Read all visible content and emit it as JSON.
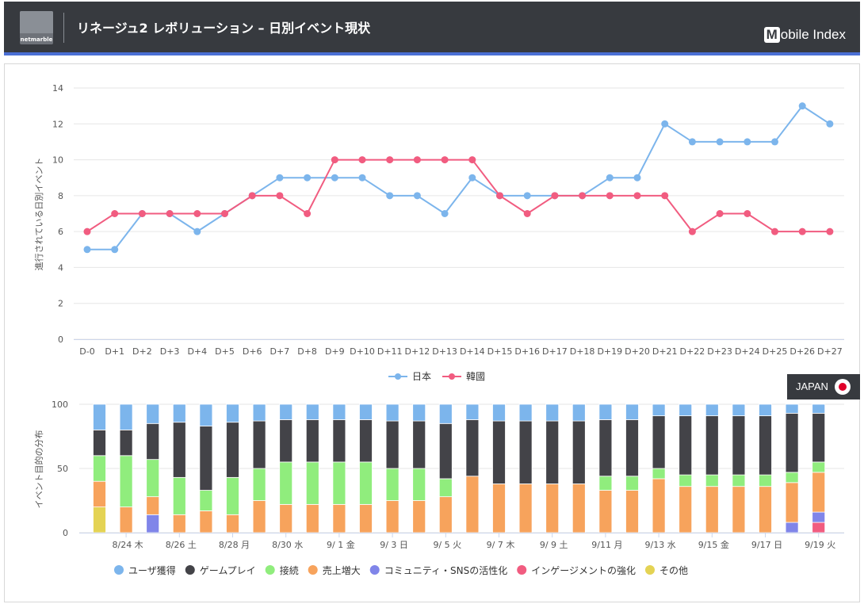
{
  "header": {
    "title": "リネージュ2 レボリューション – 日別イベント現状",
    "brand_m": "M",
    "brand_rest": "obile Index",
    "logo_text": "netmarble"
  },
  "badge": {
    "label": "JAPAN",
    "icon": "japan-flag-icon"
  },
  "colors": {
    "japan": "#7cb5ec",
    "korea": "#f15c80",
    "user": "#7cb5ec",
    "game": "#434348",
    "connect": "#90ed7d",
    "sales": "#f7a35c",
    "community": "#8085e9",
    "engagement": "#f15c80",
    "other": "#e4d354",
    "grid": "#e6e6e6"
  },
  "chart_data": [
    {
      "type": "line",
      "title": "",
      "xlabel": "",
      "ylabel": "進行されている日別イベント",
      "ylim": [
        0,
        14
      ],
      "yticks": [
        0,
        2,
        4,
        6,
        8,
        10,
        12,
        14
      ],
      "grid": true,
      "legend": "bottom",
      "x": [
        "D-0",
        "D+1",
        "D+2",
        "D+3",
        "D+4",
        "D+5",
        "D+6",
        "D+7",
        "D+8",
        "D+9",
        "D+10",
        "D+11",
        "D+12",
        "D+13",
        "D+14",
        "D+15",
        "D+16",
        "D+17",
        "D+18",
        "D+19",
        "D+20",
        "D+21",
        "D+22",
        "D+23",
        "D+24",
        "D+25",
        "D+26",
        "D+27"
      ],
      "series": [
        {
          "name": "日本",
          "color": "#7cb5ec",
          "values": [
            5,
            5,
            7,
            7,
            6,
            7,
            8,
            9,
            9,
            9,
            9,
            8,
            8,
            7,
            9,
            8,
            8,
            8,
            8,
            9,
            9,
            12,
            11,
            11,
            11,
            11,
            13,
            12
          ]
        },
        {
          "name": "韓國",
          "color": "#f15c80",
          "values": [
            6,
            7,
            7,
            7,
            7,
            7,
            8,
            8,
            7,
            10,
            10,
            10,
            10,
            10,
            10,
            8,
            7,
            8,
            8,
            8,
            8,
            8,
            6,
            7,
            7,
            6,
            6,
            6
          ]
        }
      ]
    },
    {
      "type": "bar",
      "stacked": true,
      "title": "",
      "xlabel": "",
      "ylabel": "イベント目的の分布",
      "ylim": [
        0,
        100
      ],
      "yticks": [
        0,
        50,
        100
      ],
      "legend": "bottom",
      "x_tick_labels": [
        "8/24 木",
        "8/26 土",
        "8/28 月",
        "8/30 水",
        "9/ 1 金",
        "9/ 3 日",
        "9/ 5 火",
        "9/ 7 木",
        "9/ 9 土",
        "9/11 月",
        "9/13 水",
        "9/15 金",
        "9/17 日",
        "9/19 火"
      ],
      "bars": 28,
      "series": [
        {
          "name": "その他",
          "color": "#e4d354",
          "values": [
            20,
            0,
            0,
            0,
            0,
            0,
            0,
            0,
            0,
            0,
            0,
            0,
            0,
            0,
            0,
            0,
            0,
            0,
            0,
            0,
            0,
            0,
            0,
            0,
            0,
            0,
            0,
            0
          ]
        },
        {
          "name": "インゲージメントの強化",
          "color": "#f15c80",
          "values": [
            0,
            0,
            0,
            0,
            0,
            0,
            0,
            0,
            0,
            0,
            0,
            0,
            0,
            0,
            0,
            0,
            0,
            0,
            0,
            0,
            0,
            0,
            0,
            0,
            0,
            0,
            0,
            8
          ]
        },
        {
          "name": "コミュニティ・SNSの活性化",
          "color": "#8085e9",
          "values": [
            0,
            0,
            14,
            0,
            0,
            0,
            0,
            0,
            0,
            0,
            0,
            0,
            0,
            0,
            0,
            0,
            0,
            0,
            0,
            0,
            0,
            0,
            0,
            0,
            0,
            0,
            8,
            8
          ]
        },
        {
          "name": "売上増大",
          "color": "#f7a35c",
          "values": [
            20,
            20,
            14,
            14,
            17,
            14,
            25,
            22,
            22,
            22,
            22,
            25,
            25,
            28,
            44,
            38,
            38,
            38,
            38,
            33,
            33,
            42,
            36,
            36,
            36,
            36,
            31,
            31
          ]
        },
        {
          "name": "接続",
          "color": "#90ed7d",
          "values": [
            20,
            40,
            29,
            29,
            16,
            29,
            25,
            33,
            33,
            33,
            33,
            25,
            25,
            14,
            0,
            0,
            0,
            0,
            0,
            11,
            11,
            8,
            9,
            9,
            9,
            9,
            8,
            8
          ]
        },
        {
          "name": "ゲームプレイ",
          "color": "#434348",
          "values": [
            20,
            20,
            28,
            43,
            50,
            43,
            37,
            33,
            33,
            33,
            33,
            37,
            37,
            43,
            44,
            49,
            49,
            49,
            49,
            44,
            44,
            41,
            46,
            46,
            46,
            46,
            46,
            38
          ]
        },
        {
          "name": "ユーザ獲得",
          "color": "#7cb5ec",
          "values": [
            20,
            20,
            15,
            14,
            17,
            14,
            13,
            12,
            12,
            12,
            12,
            13,
            13,
            15,
            12,
            13,
            13,
            13,
            13,
            12,
            12,
            9,
            9,
            9,
            9,
            9,
            7,
            7
          ]
        }
      ],
      "legend_order": [
        "ユーザ獲得",
        "ゲームプレイ",
        "接続",
        "売上増大",
        "コミュニティ・SNSの活性化",
        "インゲージメントの強化",
        "その他"
      ]
    }
  ]
}
